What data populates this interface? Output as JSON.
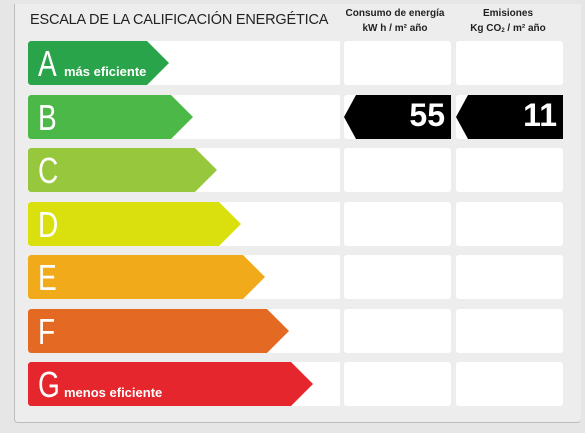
{
  "title": "ESCALA DE LA CALIFICACIÓN ENERGÉTICA",
  "columns": {
    "energy": {
      "line1": "Consumo de energía",
      "line2": "kW h / m² año"
    },
    "emissions": {
      "line1": "Emisiones",
      "line2_prefix": "Kg CO",
      "line2_sub": "2",
      "line2_suffix": " / m² año"
    }
  },
  "classes": [
    {
      "letter": "A",
      "label": "más eficiente",
      "color": "#2aa44a"
    },
    {
      "letter": "B",
      "label": "",
      "color": "#4bb848"
    },
    {
      "letter": "C",
      "label": "",
      "color": "#96c73d"
    },
    {
      "letter": "D",
      "label": "",
      "color": "#d9e00e"
    },
    {
      "letter": "E",
      "label": "",
      "color": "#f0aa1a"
    },
    {
      "letter": "F",
      "label": "",
      "color": "#e46a24"
    },
    {
      "letter": "G",
      "label": "menos eficiente",
      "color": "#e5262c"
    }
  ],
  "rating": {
    "class": "B",
    "energy_value": "55",
    "emissions_value": "11"
  }
}
